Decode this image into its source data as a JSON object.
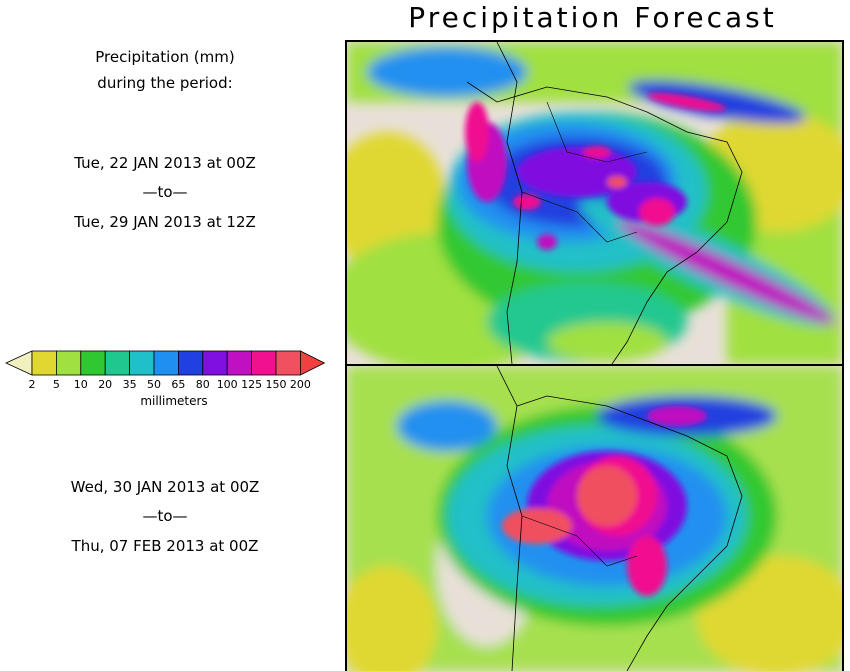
{
  "title": "Precipitation Forecast",
  "left_panel": {
    "heading_line1": "Precipitation (mm)",
    "heading_line2": "during the period:",
    "period1_start": "Tue, 22 JAN 2013 at 00Z",
    "period1_sep": "—to—",
    "period1_end": "Tue, 29 JAN 2013 at 12Z",
    "period2_start": "Wed, 30 JAN 2013 at 00Z",
    "period2_sep": "—to—",
    "period2_end": "Thu, 07 FEB 2013 at 00Z"
  },
  "legend": {
    "unit_label": "millimeters",
    "ticks": [
      "2",
      "5",
      "10",
      "20",
      "35",
      "50",
      "65",
      "80",
      "100",
      "125",
      "150",
      "200"
    ],
    "colors": [
      "#f0f0c0",
      "#e0d830",
      "#a0e040",
      "#30c830",
      "#20c890",
      "#20c0c8",
      "#2090f0",
      "#2040e0",
      "#8010e0",
      "#c010c0",
      "#f01090",
      "#f05060",
      "#f04040"
    ]
  }
}
